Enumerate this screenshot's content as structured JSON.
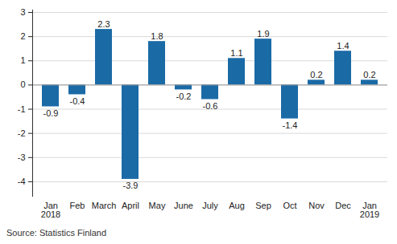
{
  "chart_data": {
    "type": "bar",
    "categories": [
      "Jan\n2018",
      "Feb",
      "March",
      "April",
      "May",
      "June",
      "July",
      "Aug",
      "Sep",
      "Oct",
      "Nov",
      "Dec",
      "Jan\n2019"
    ],
    "values": [
      -0.9,
      -0.4,
      2.3,
      -3.9,
      1.8,
      -0.2,
      -0.6,
      1.1,
      1.9,
      -1.4,
      0.2,
      1.4,
      0.2
    ],
    "color": "#1a6aa6",
    "ylim": [
      -4.6,
      3.1
    ],
    "yticks": [
      -4,
      -3,
      -2,
      -1,
      0,
      1,
      2,
      3
    ],
    "grid": true,
    "data_labels": true,
    "source": "Source: Statistics Finland"
  }
}
